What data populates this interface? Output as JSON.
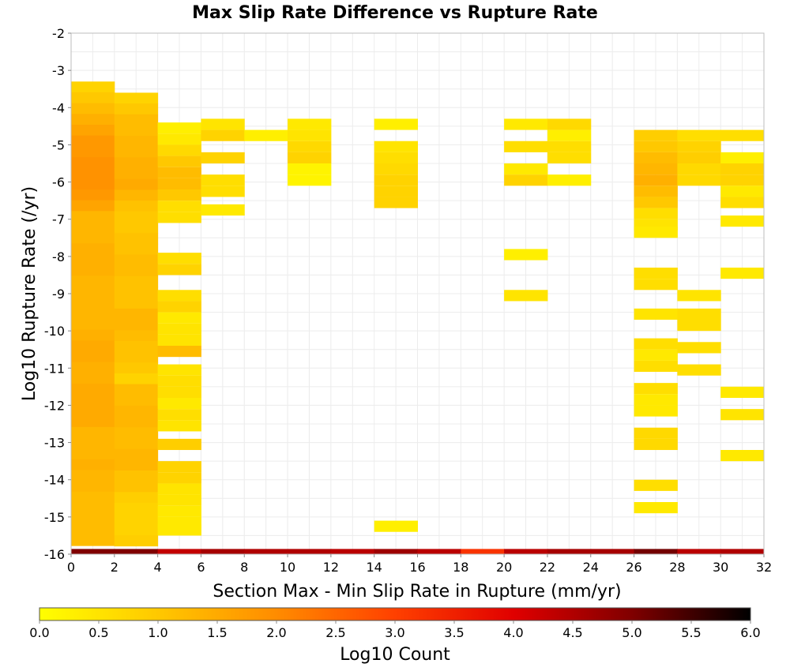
{
  "chart_data": {
    "type": "heatmap",
    "title": "Max Slip Rate Difference vs Rupture Rate",
    "xlabel": "Section Max - Min Slip Rate in Rupture (mm/yr)",
    "ylabel": "Log10 Rupture Rate (/yr)",
    "xlim": [
      0,
      32
    ],
    "ylim": [
      -16,
      -2
    ],
    "x_ticks": [
      "0",
      "2",
      "4",
      "6",
      "8",
      "10",
      "12",
      "14",
      "16",
      "18",
      "20",
      "22",
      "24",
      "26",
      "28",
      "30",
      "32"
    ],
    "y_ticks": [
      "-2",
      "-3",
      "-4",
      "-5",
      "-6",
      "-7",
      "-8",
      "-9",
      "-10",
      "-11",
      "-12",
      "-13",
      "-14",
      "-15",
      "-16"
    ],
    "grid": true,
    "x_bin_width": 2,
    "y_bin_height": 0.29,
    "colorbar": {
      "label": "Log10 Count",
      "min": 0,
      "max": 6,
      "ticks": [
        "0.0",
        "0.5",
        "1.0",
        "1.5",
        "2.0",
        "2.5",
        "3.0",
        "3.5",
        "4.0",
        "4.5",
        "5.0",
        "5.5",
        "6.0"
      ],
      "colormap": "hot (yellow to black)"
    },
    "columns": [
      {
        "x": 0,
        "ymax": -3.3,
        "bottom_value": 5.0,
        "values": [
          0.8,
          1.0,
          1.2,
          1.4,
          1.6,
          1.8,
          1.8,
          1.9,
          1.9,
          1.9,
          1.8,
          1.6,
          1.3,
          1.3,
          1.3,
          1.4,
          1.4,
          1.4,
          1.3,
          1.3,
          1.3,
          1.3,
          1.3,
          1.4,
          1.5,
          1.5,
          1.4,
          1.4,
          1.5,
          1.5,
          1.5,
          1.5,
          1.3,
          1.3,
          1.3,
          1.4,
          1.3,
          1.3,
          1.2,
          1.2,
          1.2,
          1.2,
          1.2
        ]
      },
      {
        "x": 2,
        "ymax": -3.6,
        "bottom_value": 5.0,
        "values": [
          0.8,
          1.0,
          1.2,
          1.2,
          1.3,
          1.3,
          1.4,
          1.4,
          1.5,
          1.3,
          1.1,
          1.0,
          1.0,
          1.1,
          1.1,
          1.2,
          1.2,
          1.1,
          1.1,
          1.1,
          1.3,
          1.3,
          1.2,
          1.1,
          1.1,
          1.0,
          0.8,
          1.2,
          1.2,
          1.3,
          1.3,
          1.2,
          1.2,
          1.3,
          1.3,
          1.1,
          1.1,
          0.9,
          0.8,
          0.8,
          0.8,
          0.9
        ]
      },
      {
        "x": 4,
        "bottom_value": 4.3,
        "cells": [
          [
            -4.4,
            0.3
          ],
          [
            -4.7,
            0.4
          ],
          [
            -5.0,
            0.7
          ],
          [
            -5.3,
            1.0
          ],
          [
            -5.6,
            1.2
          ],
          [
            -5.9,
            1.2
          ],
          [
            -6.2,
            1.0
          ],
          [
            -6.5,
            0.6
          ],
          [
            -6.8,
            0.6
          ],
          [
            -7.9,
            0.6
          ],
          [
            -8.2,
            0.8
          ],
          [
            -8.9,
            0.6
          ],
          [
            -9.2,
            0.8
          ],
          [
            -9.5,
            0.4
          ],
          [
            -9.8,
            0.5
          ],
          [
            -10.1,
            0.5
          ],
          [
            -10.4,
            1.2
          ],
          [
            -10.9,
            0.5
          ],
          [
            -11.2,
            0.6
          ],
          [
            -11.5,
            0.6
          ],
          [
            -11.8,
            0.4
          ],
          [
            -12.1,
            0.6
          ],
          [
            -12.4,
            0.5
          ],
          [
            -12.9,
            0.9
          ],
          [
            -13.5,
            0.8
          ],
          [
            -13.8,
            0.8
          ],
          [
            -14.1,
            0.5
          ],
          [
            -14.4,
            0.5
          ],
          [
            -14.7,
            0.4
          ],
          [
            -15.0,
            0.4
          ],
          [
            -15.2,
            0.4
          ]
        ]
      },
      {
        "x": 6,
        "bottom_value": 4.6,
        "cells": [
          [
            -4.3,
            0.5
          ],
          [
            -4.6,
            0.8
          ],
          [
            -5.2,
            0.8
          ],
          [
            -5.8,
            0.6
          ],
          [
            -6.1,
            0.6
          ],
          [
            -6.6,
            0.4
          ]
        ]
      },
      {
        "x": 8,
        "bottom_value": 4.5,
        "cells": [
          [
            -4.6,
            0.3
          ]
        ]
      },
      {
        "x": 10,
        "bottom_value": 4.5,
        "cells": [
          [
            -4.3,
            0.4
          ],
          [
            -4.6,
            0.5
          ],
          [
            -4.9,
            0.7
          ],
          [
            -5.2,
            0.8
          ],
          [
            -5.5,
            0.2
          ],
          [
            -5.8,
            0.2
          ]
        ]
      },
      {
        "x": 12,
        "bottom_value": 4.4,
        "cells": []
      },
      {
        "x": 14,
        "bottom_value": 4.7,
        "cells": [
          [
            -4.3,
            0.3
          ],
          [
            -4.9,
            0.5
          ],
          [
            -5.2,
            0.6
          ],
          [
            -5.5,
            0.7
          ],
          [
            -5.8,
            0.8
          ],
          [
            -6.1,
            0.8
          ],
          [
            -6.4,
            0.8
          ],
          [
            -15.1,
            0.3
          ]
        ]
      },
      {
        "x": 16,
        "bottom_value": 4.4,
        "cells": []
      },
      {
        "x": 18,
        "bottom_value": 3.2,
        "cells": []
      },
      {
        "x": 20,
        "bottom_value": 4.4,
        "cells": [
          [
            -4.3,
            0.4
          ],
          [
            -4.9,
            0.6
          ],
          [
            -5.5,
            0.4
          ],
          [
            -5.8,
            0.8
          ],
          [
            -7.8,
            0.3
          ],
          [
            -8.9,
            0.5
          ]
        ]
      },
      {
        "x": 22,
        "bottom_value": 4.6,
        "cells": [
          [
            -4.3,
            0.7
          ],
          [
            -4.6,
            0.3
          ],
          [
            -4.9,
            0.6
          ],
          [
            -5.2,
            0.6
          ],
          [
            -5.8,
            0.3
          ]
        ]
      },
      {
        "x": 24,
        "bottom_value": 4.6,
        "cells": []
      },
      {
        "x": 26,
        "bottom_value": 5.1,
        "cells": [
          [
            -4.6,
            0.9
          ],
          [
            -4.9,
            1.0
          ],
          [
            -5.2,
            1.2
          ],
          [
            -5.5,
            1.3
          ],
          [
            -5.8,
            1.4
          ],
          [
            -6.1,
            1.2
          ],
          [
            -6.4,
            1.0
          ],
          [
            -6.7,
            0.6
          ],
          [
            -7.0,
            0.5
          ],
          [
            -7.2,
            0.4
          ],
          [
            -8.3,
            0.6
          ],
          [
            -8.6,
            0.6
          ],
          [
            -9.4,
            0.5
          ],
          [
            -10.2,
            0.6
          ],
          [
            -10.5,
            0.4
          ],
          [
            -10.8,
            0.6
          ],
          [
            -11.4,
            0.6
          ],
          [
            -11.7,
            0.4
          ],
          [
            -12.0,
            0.4
          ],
          [
            -12.6,
            0.7
          ],
          [
            -12.9,
            0.7
          ],
          [
            -14.0,
            0.6
          ],
          [
            -14.6,
            0.4
          ]
        ]
      },
      {
        "x": 28,
        "bottom_value": 4.4,
        "cells": [
          [
            -4.6,
            0.6
          ],
          [
            -4.9,
            0.8
          ],
          [
            -5.2,
            0.9
          ],
          [
            -5.5,
            0.7
          ],
          [
            -5.8,
            0.7
          ],
          [
            -8.9,
            0.5
          ],
          [
            -9.4,
            0.6
          ],
          [
            -9.7,
            0.6
          ],
          [
            -10.3,
            0.6
          ],
          [
            -10.9,
            0.6
          ]
        ]
      },
      {
        "x": 30,
        "bottom_value": 4.5,
        "cells": [
          [
            -4.6,
            0.6
          ],
          [
            -5.2,
            0.3
          ],
          [
            -5.5,
            0.8
          ],
          [
            -5.8,
            0.8
          ],
          [
            -6.1,
            0.4
          ],
          [
            -6.4,
            0.6
          ],
          [
            -6.9,
            0.4
          ],
          [
            -8.3,
            0.4
          ],
          [
            -11.5,
            0.4
          ],
          [
            -12.1,
            0.5
          ],
          [
            -13.2,
            0.4
          ]
        ]
      }
    ]
  }
}
